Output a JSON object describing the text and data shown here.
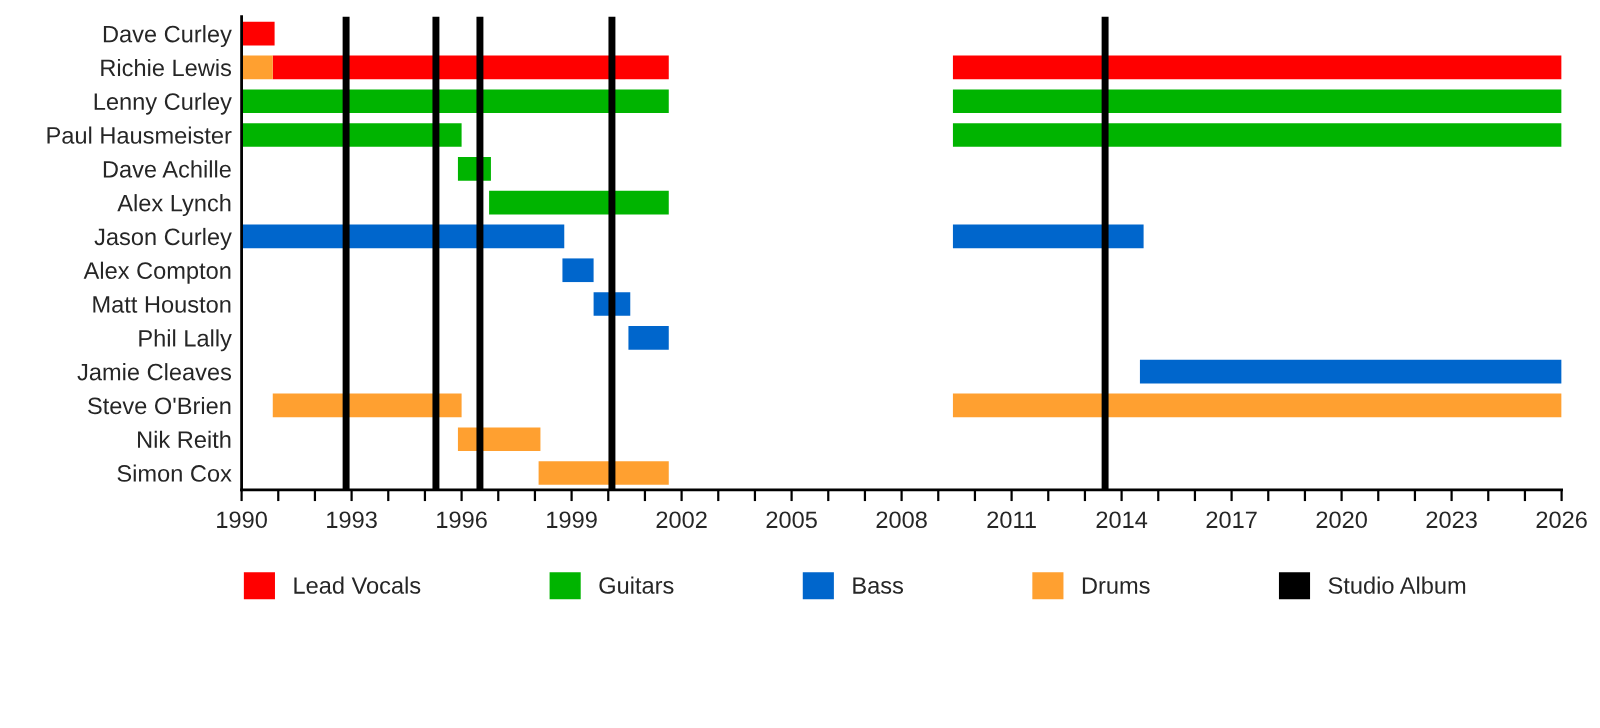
{
  "chart_data": {
    "type": "bar",
    "orientation": "horizontal",
    "categories": [
      "Dave Curley",
      "Richie Lewis",
      "Lenny Curley",
      "Paul Hausmeister",
      "Dave Achille",
      "Alex Lynch",
      "Jason Curley",
      "Alex Compton",
      "Matt Houston",
      "Phil Lally",
      "Jamie Cleaves",
      "Steve O'Brien",
      "Nik Reith",
      "Simon Cox"
    ],
    "series": [
      {
        "name": "Lead Vocals",
        "color": "#ff0000",
        "base": [
          1990,
          1990.85,
          null,
          null,
          null,
          null,
          null,
          null,
          null,
          null,
          null,
          null,
          null,
          null
        ],
        "values": [
          0.9,
          10.8,
          null,
          null,
          null,
          null,
          null,
          null,
          null,
          null,
          null,
          null,
          null,
          null
        ]
      },
      {
        "color": "#ff0000",
        "base": [
          null,
          2009.4,
          null,
          null,
          null,
          null,
          null,
          null,
          null,
          null,
          null,
          null,
          null,
          null
        ],
        "values": [
          null,
          16.6,
          null,
          null,
          null,
          null,
          null,
          null,
          null,
          null,
          null,
          null,
          null,
          null
        ]
      },
      {
        "name": "Guitars",
        "color": "#00b400",
        "base": [
          null,
          null,
          1990,
          1990,
          1995.9,
          1996.75,
          null,
          null,
          null,
          null,
          null,
          null,
          null,
          null
        ],
        "values": [
          null,
          null,
          11.65,
          6.0,
          0.9,
          4.9,
          null,
          null,
          null,
          null,
          null,
          null,
          null,
          null
        ]
      },
      {
        "color": "#00b400",
        "base": [
          null,
          null,
          2009.4,
          2009.4,
          null,
          null,
          null,
          null,
          null,
          null,
          null,
          null,
          null,
          null
        ],
        "values": [
          null,
          null,
          16.6,
          16.6,
          null,
          null,
          null,
          null,
          null,
          null,
          null,
          null,
          null,
          null
        ]
      },
      {
        "name": "Bass",
        "color": "#0066cc",
        "base": [
          null,
          null,
          null,
          null,
          null,
          null,
          1990,
          1998.75,
          1999.6,
          2000.55,
          2014.5,
          null,
          null,
          null
        ],
        "values": [
          null,
          null,
          null,
          null,
          null,
          null,
          8.8,
          0.85,
          1.0,
          1.1,
          11.5,
          null,
          null,
          null
        ]
      },
      {
        "color": "#0066cc",
        "base": [
          null,
          null,
          null,
          null,
          null,
          null,
          2009.4,
          null,
          null,
          null,
          null,
          null,
          null,
          null
        ],
        "values": [
          null,
          null,
          null,
          null,
          null,
          null,
          5.2,
          null,
          null,
          null,
          null,
          null,
          null,
          null
        ]
      },
      {
        "name": "Drums",
        "color": "#ffa030",
        "base": [
          null,
          1990,
          null,
          null,
          null,
          null,
          null,
          null,
          null,
          null,
          null,
          1990.85,
          1995.9,
          1998.1
        ],
        "values": [
          null,
          0.85,
          null,
          null,
          null,
          null,
          null,
          null,
          null,
          null,
          null,
          5.15,
          2.25,
          3.55
        ]
      },
      {
        "color": "#ffa030",
        "base": [
          null,
          null,
          null,
          null,
          null,
          null,
          null,
          null,
          null,
          null,
          null,
          2009.4,
          null,
          null
        ],
        "values": [
          null,
          null,
          null,
          null,
          null,
          null,
          null,
          null,
          null,
          null,
          null,
          16.6,
          null,
          null
        ]
      }
    ],
    "ref_lines": [
      {
        "axis": "x",
        "value": 1992.85,
        "label": "Studio Album",
        "color": "#000000"
      },
      {
        "axis": "x",
        "value": 1995.3,
        "label": null,
        "color": "#000000"
      },
      {
        "axis": "x",
        "value": 1996.5,
        "label": null,
        "color": "#000000"
      },
      {
        "axis": "x",
        "value": 2000.1,
        "label": null,
        "color": "#000000"
      },
      {
        "axis": "x",
        "value": 2013.55,
        "label": null,
        "color": "#000000"
      }
    ],
    "xlim": [
      1990,
      2026
    ],
    "xticks": [
      1990,
      {
        "value": 1991,
        "label": null
      },
      {
        "value": 1992,
        "label": null
      },
      1993,
      {
        "value": 1994,
        "label": null
      },
      {
        "value": 1995,
        "label": null
      },
      1996,
      {
        "value": 1997,
        "label": null
      },
      {
        "value": 1998,
        "label": null
      },
      1999,
      {
        "value": 2000,
        "label": null
      },
      {
        "value": 2001,
        "label": null
      },
      2002,
      {
        "value": 2003,
        "label": null
      },
      {
        "value": 2004,
        "label": null
      },
      2005,
      {
        "value": 2006,
        "label": null
      },
      {
        "value": 2007,
        "label": null
      },
      2008,
      {
        "value": 2009,
        "label": null
      },
      {
        "value": 2010,
        "label": null
      },
      2011,
      {
        "value": 2012,
        "label": null
      },
      {
        "value": 2013,
        "label": null
      },
      2014,
      {
        "value": 2015,
        "label": null
      },
      {
        "value": 2016,
        "label": null
      },
      2017,
      {
        "value": 2018,
        "label": null
      },
      {
        "value": 2019,
        "label": null
      },
      2020,
      {
        "value": 2021,
        "label": null
      },
      {
        "value": 2022,
        "label": null
      },
      2023,
      {
        "value": 2024,
        "label": null
      },
      {
        "value": 2025,
        "label": null
      },
      2026
    ],
    "grid": false,
    "legend": "bottom"
  }
}
